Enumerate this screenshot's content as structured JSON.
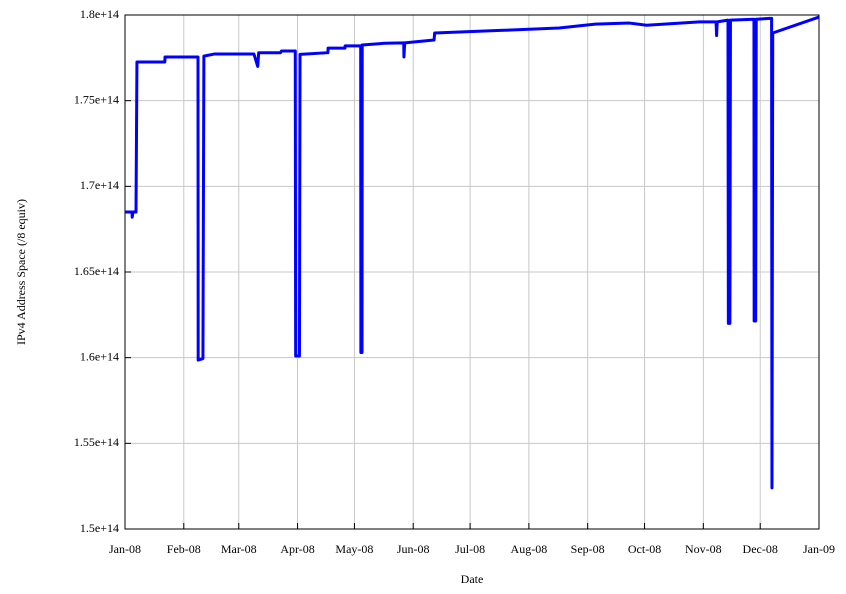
{
  "chart_data": {
    "type": "line",
    "xlabel": "Date",
    "ylabel": "IPv4 Address Space (/8 equiv)",
    "color": "#0000ff",
    "grid": true,
    "x": [
      0,
      3.7,
      3.8,
      4.2,
      5.8,
      6.3,
      21,
      21.1,
      38.5,
      38.6,
      41.1,
      41.6,
      47,
      68,
      70,
      70.5,
      82,
      82.5,
      89.8,
      90,
      92,
      92.3,
      107,
      107.1,
      116,
      116.1,
      124.3,
      124.4,
      125,
      125.1,
      137,
      147,
      147.1,
      147.5,
      163,
      163.3,
      198,
      229,
      248,
      266,
      275,
      303,
      311.7,
      312,
      312.3,
      318,
      318.2,
      319,
      319.3,
      331.7,
      331.8,
      332.6,
      332.9,
      340,
      341,
      341.2,
      341.6,
      366
    ],
    "values": [
      168500000000000.0,
      168500000000000.0,
      168200000000000.0,
      168500000000000.0,
      168500000000000.0,
      177260000000000.0,
      177260000000000.0,
      177550000000000.0,
      177550000000000.0,
      159860000000000.0,
      159950000000000.0,
      177600000000000.0,
      177720000000000.0,
      177720000000000.0,
      177000000000000.0,
      177800000000000.0,
      177800000000000.0,
      177900000000000.0,
      177900000000000.0,
      160100000000000.0,
      160100000000000.0,
      177700000000000.0,
      177800000000000.0,
      178070000000000.0,
      178070000000000.0,
      178200000000000.0,
      178200000000000.0,
      160300000000000.0,
      160300000000000.0,
      178250000000000.0,
      178350000000000.0,
      178370000000000.0,
      177550000000000.0,
      178370000000000.0,
      178540000000000.0,
      178950000000000.0,
      179100000000000.0,
      179240000000000.0,
      179470000000000.0,
      179530000000000.0,
      179400000000000.0,
      179600000000000.0,
      179600000000000.0,
      178800000000000.0,
      179600000000000.0,
      179700000000000.0,
      162000000000000.0,
      162000000000000.0,
      179700000000000.0,
      179750000000000.0,
      162140000000000.0,
      162140000000000.0,
      179750000000000.0,
      179800000000000.0,
      179800000000000.0,
      152400000000000.0,
      178950000000000.0,
      179880000000000.0
    ],
    "xlim": [
      0,
      366
    ],
    "xticks": [
      {
        "value": 0,
        "label": "Jan-08"
      },
      {
        "value": 31,
        "label": "Feb-08"
      },
      {
        "value": 60,
        "label": "Mar-08"
      },
      {
        "value": 91,
        "label": "Apr-08"
      },
      {
        "value": 121,
        "label": "May-08"
      },
      {
        "value": 152,
        "label": "Jun-08"
      },
      {
        "value": 182,
        "label": "Jul-08"
      },
      {
        "value": 213,
        "label": "Aug-08"
      },
      {
        "value": 244,
        "label": "Sep-08"
      },
      {
        "value": 274,
        "label": "Oct-08"
      },
      {
        "value": 305,
        "label": "Nov-08"
      },
      {
        "value": 335,
        "label": "Dec-08"
      },
      {
        "value": 366,
        "label": "Jan-09"
      }
    ],
    "ylim": [
      150000000000000.0,
      180000000000000.0
    ],
    "yticks": [
      {
        "value": 150000000000000.0,
        "label": "1.5e+14"
      },
      {
        "value": 155000000000000.0,
        "label": "1.55e+14"
      },
      {
        "value": 160000000000000.0,
        "label": "1.6e+14"
      },
      {
        "value": 165000000000000.0,
        "label": "1.65e+14"
      },
      {
        "value": 170000000000000.0,
        "label": "1.7e+14"
      },
      {
        "value": 175000000000000.0,
        "label": "1.75e+14"
      },
      {
        "value": 180000000000000.0,
        "label": "1.8e+14"
      }
    ]
  }
}
